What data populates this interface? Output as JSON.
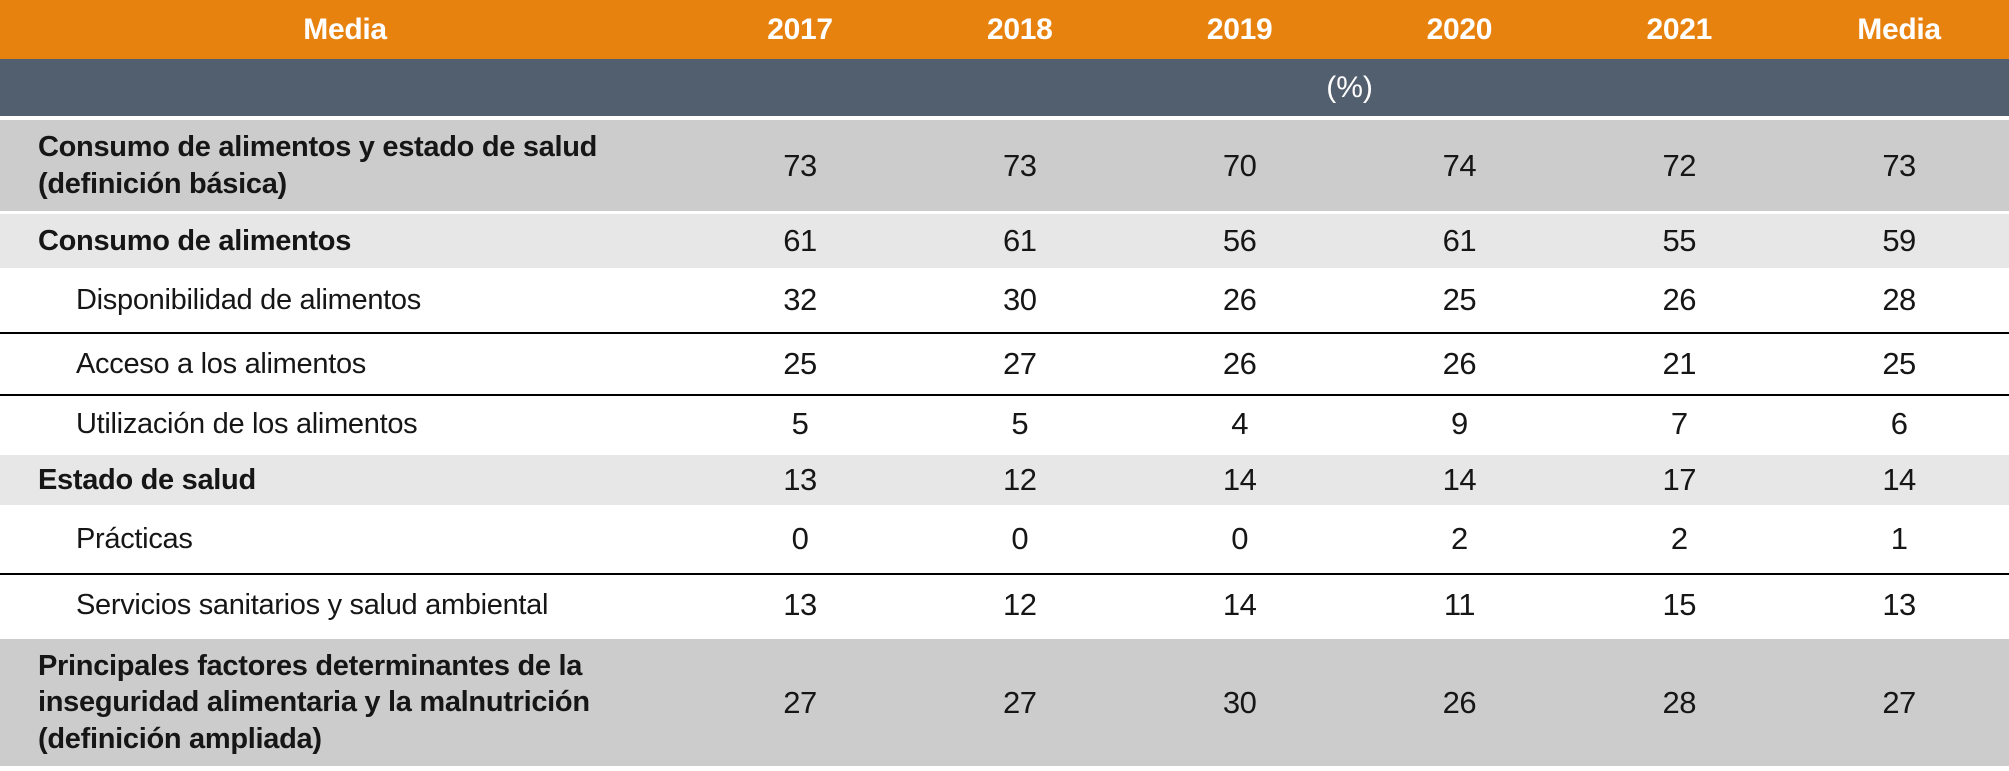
{
  "chart_data": {
    "type": "table",
    "title": "",
    "unit_label": "(%)",
    "columns": [
      "Media",
      "2017",
      "2018",
      "2019",
      "2020",
      "2021",
      "Media"
    ],
    "rows": [
      {
        "label": "Consumo de alimentos y estado de salud\n(definición básica)",
        "level": "section",
        "shade": "dark",
        "values": [
          "73",
          "73",
          "70",
          "74",
          "72",
          "73"
        ]
      },
      {
        "label": "Consumo de alimentos",
        "level": "section",
        "shade": "light",
        "values": [
          "61",
          "61",
          "56",
          "61",
          "55",
          "59"
        ]
      },
      {
        "label": "Disponibilidad de alimentos",
        "level": "sub",
        "shade": "white",
        "values": [
          "32",
          "30",
          "26",
          "25",
          "26",
          "28"
        ]
      },
      {
        "label": "Acceso a los alimentos",
        "level": "sub",
        "shade": "white",
        "values": [
          "25",
          "27",
          "26",
          "26",
          "21",
          "25"
        ]
      },
      {
        "label": "Utilización de los alimentos",
        "level": "sub",
        "shade": "white",
        "values": [
          "5",
          "5",
          "4",
          "9",
          "7",
          "6"
        ]
      },
      {
        "label": "Estado de salud",
        "level": "section",
        "shade": "light",
        "values": [
          "13",
          "12",
          "14",
          "14",
          "17",
          "14"
        ]
      },
      {
        "label": "Prácticas",
        "level": "sub",
        "shade": "white",
        "values": [
          "0",
          "0",
          "0",
          "2",
          "2",
          "1"
        ]
      },
      {
        "label": "Servicios sanitarios y salud ambiental",
        "level": "sub",
        "shade": "white",
        "values": [
          "13",
          "12",
          "14",
          "11",
          "15",
          "13"
        ]
      },
      {
        "label": "Principales factores determinantes de la\ninseguridad alimentaria y la malnutrición\n(definición ampliada)",
        "level": "section",
        "shade": "dark",
        "values": [
          "27",
          "27",
          "30",
          "26",
          "28",
          "27"
        ]
      }
    ],
    "colors": {
      "header_bg": "#E8820E",
      "unit_bg": "#525F6E",
      "section_dark_bg": "#CCCCCC",
      "section_light_bg": "#E7E7E7",
      "row_bg": "#FFFFFF",
      "header_text": "#FFFFFF",
      "body_text": "#161616",
      "divider": "#000000"
    }
  }
}
